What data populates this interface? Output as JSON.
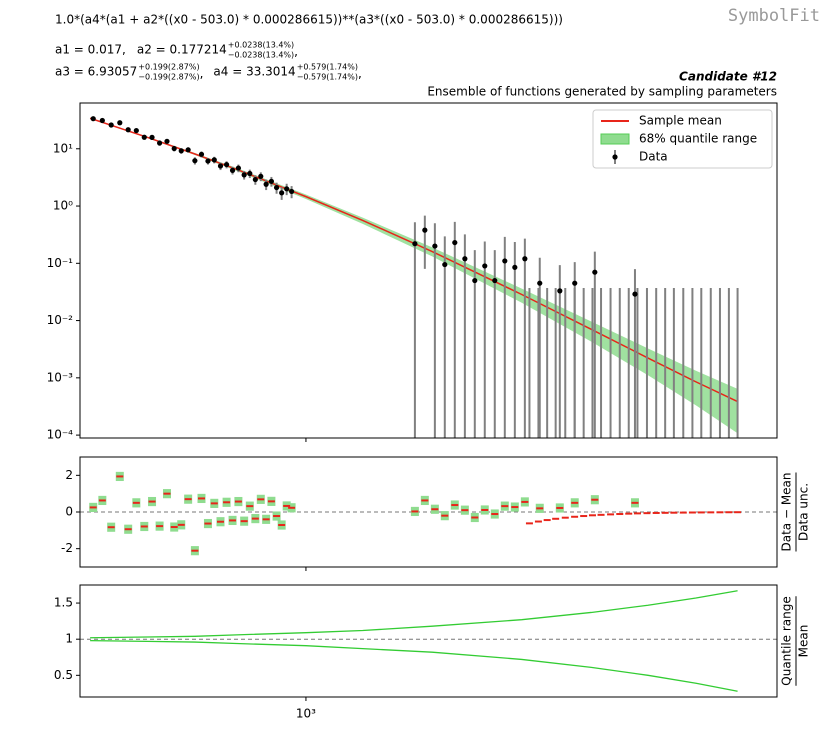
{
  "formula": "1.0*(a4*(a1 + a2*((x0 - 503.0) * 0.000286615))**(a3*((x0 - 503.0) * 0.000286615)))",
  "watermark": "SymbolFit",
  "parameters": [
    [
      {
        "text": "a1 = 0.017,"
      },
      {
        "text": "a2 = 0.177214",
        "plus": "+0.0238(13.4%)",
        "minus": "−0.0238(13.4%)",
        "after": ","
      }
    ],
    [
      {
        "text": "a3 = 6.93057",
        "plus": "+0.199(2.87%)",
        "minus": "−0.199(2.87%)",
        "after": ","
      },
      {
        "text": "a4 = 33.3014",
        "plus": "+0.579(1.74%)",
        "minus": "−0.579(1.74%)",
        "after": ","
      }
    ]
  ],
  "chart_data": [
    {
      "type": "errorbar",
      "title": "Candidate #12",
      "subtitle": "Ensemble of functions generated by sampling parameters",
      "log_x": true,
      "log_y": true,
      "xlim": [
        484,
        4540
      ],
      "ylim": [
        8.9e-05,
        63
      ],
      "yticks": [
        {
          "value": 10,
          "label": "10¹"
        },
        {
          "value": 1,
          "label": "10⁰"
        },
        {
          "value": 0.1,
          "label": "10⁻¹"
        },
        {
          "value": 0.01,
          "label": "10⁻²"
        },
        {
          "value": 0.001,
          "label": "10⁻³"
        },
        {
          "value": 0.0001,
          "label": "10⁻⁴"
        }
      ],
      "legend": "upper right",
      "mean": {
        "name": "Sample mean",
        "color": "#e8251a",
        "x": [
          500,
          600,
          700,
          800,
          1000,
          1200,
          1500,
          2000,
          2500,
          3000,
          3500,
          4000
        ],
        "values": [
          34.1,
          15.95,
          8.11,
          4.38,
          1.46,
          0.561,
          0.1606,
          0.02854,
          0.00704,
          0.002216,
          0.00085,
          0.000385
        ]
      },
      "band": {
        "name": "68% quantile range",
        "color": "#8fdc8f",
        "x": [
          500,
          600,
          700,
          800,
          1000,
          1200,
          1500,
          2000,
          2500,
          3000,
          3500,
          4000
        ],
        "upper": [
          34.8,
          16.4,
          8.43,
          4.64,
          1.59,
          0.628,
          0.19,
          0.0362,
          0.00964,
          0.00326,
          0.00133,
          0.00064
        ],
        "lower": [
          33.4,
          15.5,
          7.79,
          4.12,
          1.33,
          0.488,
          0.132,
          0.0205,
          0.00429,
          0.00111,
          0.00033,
          0.000108
        ]
      },
      "data": {
        "name": "Data",
        "color": "#000000",
        "error_color": "#808080",
        "x": [
          505,
          520,
          535,
          550,
          565,
          580,
          595,
          610,
          625,
          640,
          655,
          670,
          685,
          700,
          715,
          730,
          745,
          760,
          775,
          790,
          805,
          820,
          835,
          850,
          865,
          880,
          895,
          910,
          925,
          940,
          955,
          1419,
          1465,
          1513,
          1562,
          1613,
          1666,
          1720,
          1776,
          1834,
          1894,
          1956,
          2020,
          2119,
          2260,
          2371,
          2529,
          2877,
          2050,
          2110,
          2170,
          2230,
          2300,
          2370,
          2440,
          2510,
          2580,
          2660,
          2740,
          2820,
          2900,
          2990,
          3080,
          3170,
          3260,
          3360,
          3460,
          3560,
          3670,
          3780,
          3890,
          4000
        ],
        "values": [
          33.5,
          31.2,
          26.0,
          28.5,
          21.5,
          20.8,
          15.9,
          15.8,
          12.6,
          13.5,
          10.1,
          9.2,
          9.6,
          6.2,
          8.0,
          6.1,
          6.4,
          5.0,
          5.3,
          4.2,
          4.6,
          3.5,
          3.7,
          2.9,
          3.3,
          2.4,
          2.7,
          2.1,
          1.7,
          2.0,
          1.8,
          0.22,
          0.38,
          0.2,
          0.095,
          0.23,
          0.12,
          0.05,
          0.09,
          0.05,
          0.11,
          0.085,
          0.12,
          0.045,
          0.033,
          0.045,
          0.07,
          0.029,
          0,
          0,
          0,
          0,
          0,
          0,
          0,
          0,
          0,
          0,
          0,
          0,
          0,
          0,
          0,
          0,
          0,
          0,
          0,
          0,
          0,
          0,
          0,
          0
        ],
        "errors": [
          2.0,
          1.9,
          1.8,
          1.8,
          1.6,
          1.6,
          1.4,
          1.4,
          1.3,
          1.3,
          1.1,
          1.0,
          1.0,
          0.9,
          0.95,
          0.8,
          0.85,
          0.75,
          0.75,
          0.65,
          0.7,
          0.6,
          0.62,
          0.55,
          0.58,
          0.5,
          0.52,
          0.46,
          0.42,
          0.45,
          0.43,
          0.3,
          0.3,
          0.3,
          0.2,
          0.3,
          0.2,
          0.12,
          0.15,
          0.12,
          0.18,
          0.15,
          0.15,
          0.08,
          0.06,
          0.06,
          0.09,
          0.05,
          0.037,
          0.037,
          0.037,
          0.037,
          0.037,
          0.037,
          0.037,
          0.037,
          0.037,
          0.037,
          0.037,
          0.037,
          0.037,
          0.037,
          0.037,
          0.037,
          0.037,
          0.037,
          0.037,
          0.037,
          0.037,
          0.037,
          0.037,
          0.037
        ]
      }
    },
    {
      "type": "residual",
      "ylabel_numerator": "Data − Mean",
      "ylabel_denominator": "Data unc.",
      "log_x": true,
      "log_y": false,
      "xlim": [
        484,
        4540
      ],
      "ylim": [
        -3,
        3
      ],
      "yticks": [
        -2,
        0,
        2
      ],
      "reference": 0,
      "color": "#e8251a",
      "band_color": "#8fdc8f",
      "x": [
        505,
        520,
        535,
        550,
        565,
        580,
        595,
        610,
        625,
        640,
        655,
        670,
        685,
        700,
        715,
        730,
        745,
        760,
        775,
        790,
        805,
        820,
        835,
        850,
        865,
        880,
        895,
        910,
        925,
        940,
        955,
        1419,
        1465,
        1513,
        1562,
        1613,
        1666,
        1720,
        1776,
        1834,
        1894,
        1956,
        2020,
        2119,
        2260,
        2371,
        2529,
        2877,
        2050,
        2110,
        2170,
        2230,
        2300,
        2370,
        2440,
        2510,
        2580,
        2660,
        2740,
        2820,
        2900,
        2990,
        3080,
        3170,
        3260,
        3360,
        3460,
        3560,
        3670,
        3780,
        3890,
        4000
      ],
      "values": [
        0.25,
        0.63,
        -0.83,
        1.94,
        -0.94,
        0.5,
        -0.79,
        0.57,
        -0.77,
        1.0,
        -0.82,
        -0.7,
        0.7,
        -2.11,
        0.74,
        -0.63,
        0.47,
        -0.53,
        0.53,
        -0.46,
        0.57,
        -0.5,
        0.32,
        -0.36,
        0.69,
        -0.4,
        0.58,
        -0.22,
        -0.71,
        0.33,
        0.23,
        0.03,
        0.63,
        0.15,
        -0.2,
        0.38,
        0.1,
        -0.3,
        0.11,
        -0.11,
        0.32,
        0.27,
        0.55,
        0.2,
        0.22,
        0.5,
        0.67,
        0.5,
        -0.62,
        -0.52,
        -0.44,
        -0.37,
        -0.31,
        -0.26,
        -0.22,
        -0.18,
        -0.155,
        -0.13,
        -0.11,
        -0.09,
        -0.075,
        -0.063,
        -0.053,
        -0.045,
        -0.038,
        -0.032,
        -0.027,
        -0.023,
        -0.019,
        -0.016,
        -0.013,
        -0.011
      ],
      "band": [
        0.25,
        0.25,
        0.25,
        0.25,
        0.25,
        0.25,
        0.25,
        0.25,
        0.25,
        0.25,
        0.25,
        0.25,
        0.25,
        0.25,
        0.25,
        0.25,
        0.25,
        0.25,
        0.25,
        0.25,
        0.25,
        0.25,
        0.25,
        0.25,
        0.25,
        0.25,
        0.25,
        0.25,
        0.25,
        0.25,
        0.25,
        0.25,
        0.25,
        0.25,
        0.25,
        0.25,
        0.25,
        0.25,
        0.25,
        0.25,
        0.25,
        0.25,
        0.25,
        0.25,
        0.25,
        0.25,
        0.25,
        0.25,
        null,
        null,
        null,
        null,
        null,
        null,
        null,
        null,
        null,
        null,
        null,
        null,
        null,
        null,
        null,
        null,
        null,
        null,
        null,
        null,
        null,
        null,
        null,
        null
      ]
    },
    {
      "type": "line",
      "ylabel_numerator": "Quantile range",
      "ylabel_denominator": "Mean",
      "log_x": true,
      "log_y": false,
      "xlim": [
        484,
        4540
      ],
      "ylim": [
        0.2,
        1.75
      ],
      "xticks": [
        {
          "value": 1000,
          "label": "10³"
        }
      ],
      "yticks": [
        0.5,
        1,
        1.5
      ],
      "reference": 1,
      "x": [
        500,
        600,
        700,
        800,
        1000,
        1200,
        1500,
        2000,
        2500,
        3000,
        3500,
        4000
      ],
      "series": [
        {
          "color": "#33cc33",
          "values": [
            1.02,
            1.03,
            1.04,
            1.06,
            1.09,
            1.12,
            1.18,
            1.27,
            1.37,
            1.47,
            1.57,
            1.67
          ]
        },
        {
          "color": "#33cc33",
          "values": [
            0.98,
            0.97,
            0.96,
            0.94,
            0.91,
            0.87,
            0.82,
            0.72,
            0.61,
            0.5,
            0.39,
            0.28
          ]
        }
      ]
    }
  ]
}
